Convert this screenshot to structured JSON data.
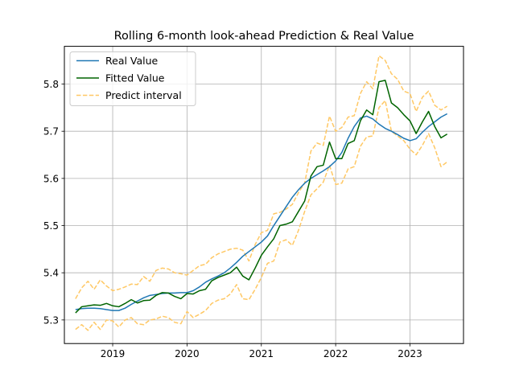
{
  "chart_data": {
    "type": "line",
    "title": "Rolling 6-month look-ahead Prediction & Real Value",
    "xlabel": "",
    "ylabel": "",
    "xlim": [
      2018.35,
      2023.72
    ],
    "ylim": [
      5.25,
      5.88
    ],
    "grid": true,
    "legend_position": "top-left",
    "x_ticks": [
      {
        "value": 2019,
        "label": "2019"
      },
      {
        "value": 2020,
        "label": "2020"
      },
      {
        "value": 2021,
        "label": "2021"
      },
      {
        "value": 2022,
        "label": "2022"
      },
      {
        "value": 2023,
        "label": "2023"
      }
    ],
    "y_ticks": [
      {
        "value": 5.3,
        "label": "5.3"
      },
      {
        "value": 5.4,
        "label": "5.4"
      },
      {
        "value": 5.5,
        "label": "5.5"
      },
      {
        "value": 5.6,
        "label": "5.6"
      },
      {
        "value": 5.7,
        "label": "5.7"
      },
      {
        "value": 5.8,
        "label": "5.8"
      }
    ],
    "x": [
      2018.5,
      2018.583,
      2018.667,
      2018.75,
      2018.833,
      2018.917,
      2019.0,
      2019.083,
      2019.167,
      2019.25,
      2019.333,
      2019.417,
      2019.5,
      2019.583,
      2019.667,
      2019.75,
      2019.833,
      2019.917,
      2020.0,
      2020.083,
      2020.167,
      2020.25,
      2020.333,
      2020.417,
      2020.5,
      2020.583,
      2020.667,
      2020.75,
      2020.833,
      2020.917,
      2021.0,
      2021.083,
      2021.167,
      2021.25,
      2021.333,
      2021.417,
      2021.5,
      2021.583,
      2021.667,
      2021.75,
      2021.833,
      2021.917,
      2022.0,
      2022.083,
      2022.167,
      2022.25,
      2022.333,
      2022.417,
      2022.5,
      2022.583,
      2022.667,
      2022.75,
      2022.833,
      2022.917,
      2023.0,
      2023.083,
      2023.167,
      2023.25,
      2023.333,
      2023.417,
      2023.5
    ],
    "series": [
      {
        "name": "Real Value",
        "color": "#1f77b4",
        "dash": "solid",
        "values": [
          5.322,
          5.324,
          5.325,
          5.325,
          5.324,
          5.322,
          5.32,
          5.32,
          5.325,
          5.333,
          5.34,
          5.347,
          5.352,
          5.354,
          5.356,
          5.357,
          5.357,
          5.358,
          5.358,
          5.362,
          5.37,
          5.38,
          5.387,
          5.393,
          5.4,
          5.41,
          5.422,
          5.435,
          5.445,
          5.455,
          5.465,
          5.478,
          5.5,
          5.52,
          5.54,
          5.56,
          5.576,
          5.59,
          5.6,
          5.608,
          5.616,
          5.625,
          5.637,
          5.655,
          5.685,
          5.71,
          5.728,
          5.732,
          5.726,
          5.715,
          5.706,
          5.7,
          5.693,
          5.685,
          5.68,
          5.684,
          5.698,
          5.71,
          5.72,
          5.73,
          5.737
        ]
      },
      {
        "name": "Fitted Value",
        "color": "#006400",
        "dash": "solid",
        "values": [
          5.315,
          5.328,
          5.33,
          5.332,
          5.331,
          5.335,
          5.33,
          5.328,
          5.335,
          5.343,
          5.336,
          5.341,
          5.342,
          5.352,
          5.358,
          5.357,
          5.35,
          5.345,
          5.356,
          5.355,
          5.362,
          5.365,
          5.383,
          5.39,
          5.395,
          5.4,
          5.412,
          5.393,
          5.385,
          5.41,
          5.437,
          5.455,
          5.472,
          5.5,
          5.503,
          5.508,
          5.53,
          5.552,
          5.605,
          5.625,
          5.628,
          5.677,
          5.642,
          5.642,
          5.674,
          5.68,
          5.722,
          5.745,
          5.735,
          5.805,
          5.808,
          5.76,
          5.75,
          5.735,
          5.722,
          5.695,
          5.72,
          5.742,
          5.71,
          5.686,
          5.694
        ]
      },
      {
        "name": "Predict interval",
        "color": "#ffc864",
        "dash": "dashed",
        "values": [
          5.345,
          5.368,
          5.382,
          5.365,
          5.385,
          5.372,
          5.362,
          5.365,
          5.37,
          5.376,
          5.375,
          5.392,
          5.382,
          5.405,
          5.41,
          5.408,
          5.4,
          5.398,
          5.395,
          5.405,
          5.415,
          5.418,
          5.432,
          5.44,
          5.445,
          5.45,
          5.452,
          5.448,
          5.425,
          5.46,
          5.485,
          5.49,
          5.525,
          5.528,
          5.535,
          5.545,
          5.57,
          5.59,
          5.658,
          5.675,
          5.67,
          5.732,
          5.7,
          5.708,
          5.73,
          5.733,
          5.78,
          5.805,
          5.79,
          5.86,
          5.85,
          5.822,
          5.81,
          5.785,
          5.78,
          5.742,
          5.772,
          5.785,
          5.755,
          5.745,
          5.753
        ]
      },
      {
        "name": "",
        "color": "#ffc864",
        "dash": "dashed",
        "values": [
          5.28,
          5.29,
          5.278,
          5.295,
          5.28,
          5.3,
          5.298,
          5.285,
          5.3,
          5.305,
          5.292,
          5.29,
          5.3,
          5.302,
          5.308,
          5.305,
          5.295,
          5.292,
          5.318,
          5.305,
          5.312,
          5.32,
          5.335,
          5.342,
          5.345,
          5.355,
          5.375,
          5.345,
          5.343,
          5.365,
          5.39,
          5.42,
          5.425,
          5.465,
          5.47,
          5.458,
          5.49,
          5.53,
          5.565,
          5.578,
          5.592,
          5.628,
          5.587,
          5.59,
          5.62,
          5.625,
          5.668,
          5.688,
          5.69,
          5.75,
          5.765,
          5.7,
          5.69,
          5.68,
          5.662,
          5.65,
          5.67,
          5.695,
          5.665,
          5.625,
          5.635
        ]
      }
    ]
  }
}
